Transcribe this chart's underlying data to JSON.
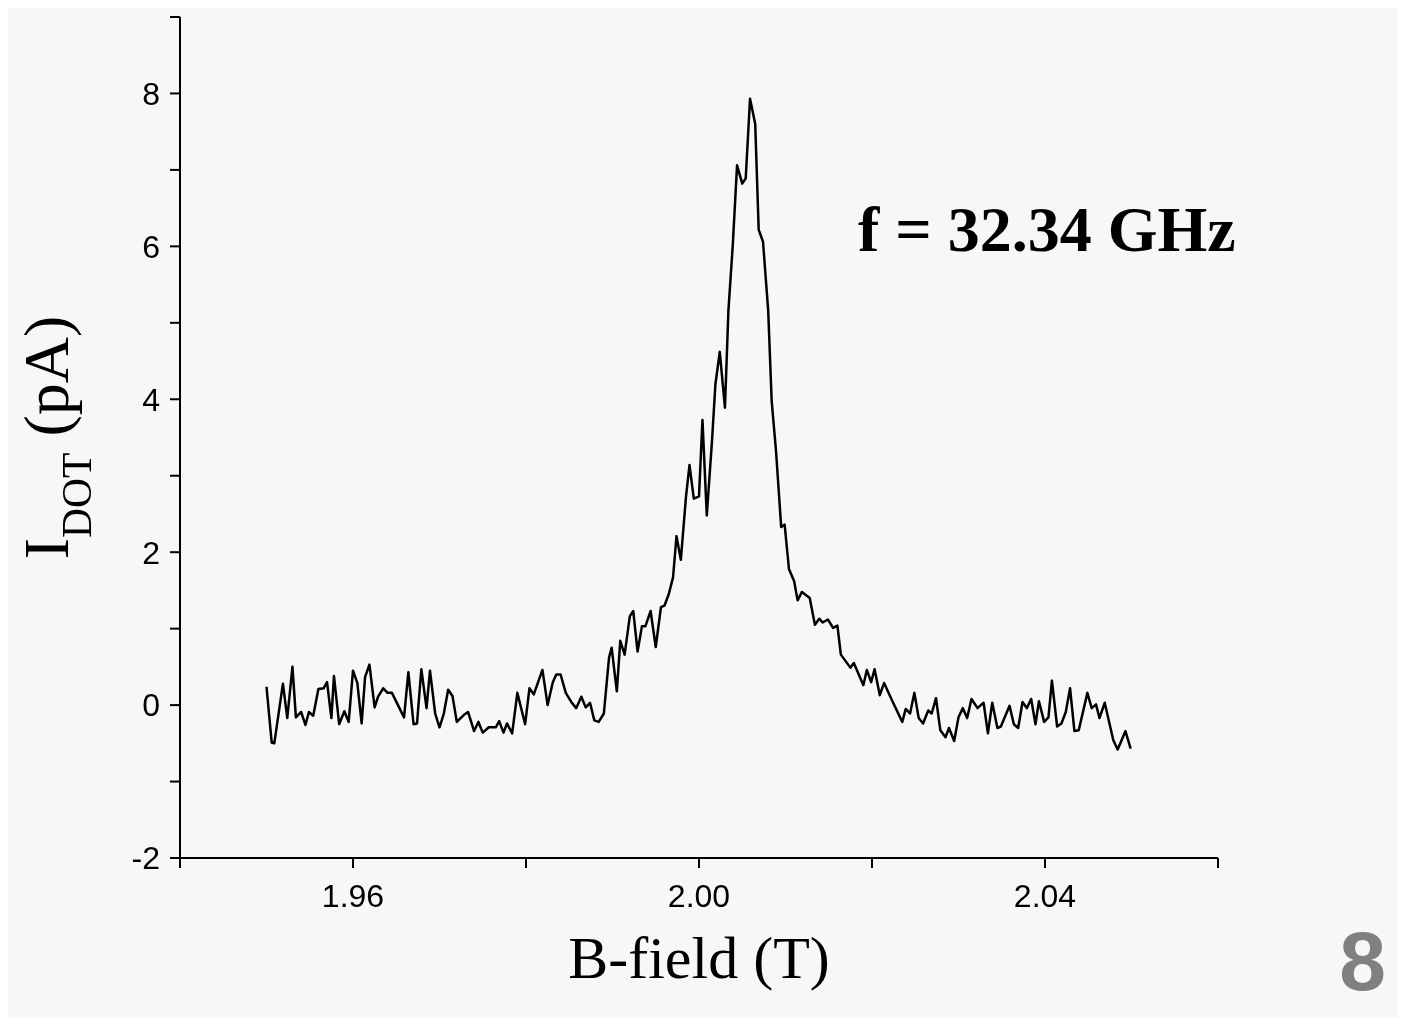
{
  "chart_data": {
    "type": "line",
    "xlabel": "B-field (T)",
    "ylabel": "I$_{DOT}$ (pA)",
    "annotations": [
      "f = 32.34 GHz",
      "8"
    ],
    "xlim": [
      1.94,
      2.06
    ],
    "ylim": [
      -2,
      9
    ],
    "xticks": [
      {
        "value": 1.94,
        "label": null
      },
      1.96,
      {
        "value": 1.98,
        "label": null
      },
      {
        "value": 2,
        "label": "2.00"
      },
      {
        "value": 2.02,
        "label": null
      },
      2.04,
      {
        "value": 2.06,
        "label": null
      }
    ],
    "yticks": [
      -2,
      {
        "value": -1,
        "label": null
      },
      0,
      {
        "value": 1,
        "label": null
      },
      2,
      {
        "value": 3,
        "label": null
      },
      4,
      {
        "value": 5,
        "label": null
      },
      6,
      {
        "value": 7,
        "label": null
      },
      8,
      {
        "value": 9,
        "label": null
      }
    ],
    "grid": false,
    "legend": false,
    "marker": "none",
    "line_style": "solid",
    "series": [
      {
        "color": "#000000",
        "x": [
          1.95,
          1.9506,
          1.9509,
          1.9519,
          1.9524,
          1.953,
          1.9534,
          1.954,
          1.9545,
          1.9549,
          1.9554,
          1.956,
          1.9566,
          1.957,
          1.9575,
          1.9578,
          1.9584,
          1.959,
          1.9595,
          1.96,
          1.9605,
          1.961,
          1.9614,
          1.9619,
          1.9625,
          1.9629,
          1.9635,
          1.964,
          1.9645,
          1.9652,
          1.9659,
          1.9664,
          1.967,
          1.9674,
          1.9679,
          1.9685,
          1.9689,
          1.9695,
          1.97,
          1.9705,
          1.971,
          1.9715,
          1.972,
          1.9728,
          1.9733,
          1.974,
          1.9745,
          1.975,
          1.9757,
          1.9765,
          1.9769,
          1.9774,
          1.9778,
          1.9784,
          1.979,
          1.9799,
          1.9804,
          1.9809,
          1.9819,
          1.9825,
          1.9831,
          1.9835,
          1.984,
          1.9846,
          1.9853,
          1.9858,
          1.9864,
          1.9869,
          1.9874,
          1.9879,
          1.9884,
          1.989,
          1.9896,
          1.9899,
          1.9905,
          1.9909,
          1.9914,
          1.992,
          1.9924,
          1.9929,
          1.9934,
          1.9938,
          1.9944,
          1.995,
          1.9956,
          1.996,
          1.9965,
          1.997,
          1.9974,
          1.9979,
          1.9985,
          1.9989,
          1.9994,
          2.0,
          2.0004,
          2.0009,
          2.0015,
          2.0019,
          2.0024,
          2.003,
          2.0034,
          2.0039,
          2.0044,
          2.005,
          2.0054,
          2.0059,
          2.0065,
          2.0069,
          2.0074,
          2.008,
          2.0084,
          2.0089,
          2.0095,
          2.0099,
          2.0104,
          2.011,
          2.0114,
          2.0119,
          2.0128,
          2.0134,
          2.0139,
          2.0143,
          2.0149,
          2.0155,
          2.016,
          2.0164,
          2.0175,
          2.0179,
          2.019,
          2.0194,
          2.0199,
          2.0203,
          2.0209,
          2.0214,
          2.0222,
          2.0235,
          2.0239,
          2.0244,
          2.0249,
          2.0254,
          2.0259,
          2.0265,
          2.0269,
          2.0274,
          2.0279,
          2.0285,
          2.0289,
          2.0295,
          2.03,
          2.0305,
          2.031,
          2.0315,
          2.0322,
          2.0329,
          2.0334,
          2.0339,
          2.0345,
          2.0349,
          2.0359,
          2.0364,
          2.0369,
          2.0374,
          2.0379,
          2.0384,
          2.0389,
          2.0393,
          2.0399,
          2.0404,
          2.0408,
          2.0414,
          2.0419,
          2.0424,
          2.0429,
          2.0434,
          2.0439,
          2.0449,
          2.0454,
          2.0459,
          2.0463,
          2.0469,
          2.0479,
          2.0484,
          2.049,
          2.0493,
          2.0499
        ],
        "values": [
          0.24,
          -0.49,
          -0.5,
          0.28,
          -0.17,
          0.5,
          -0.16,
          -0.09,
          -0.26,
          -0.09,
          -0.14,
          0.21,
          0.22,
          0.3,
          -0.17,
          0.38,
          -0.25,
          -0.08,
          -0.22,
          0.45,
          0.29,
          -0.24,
          0.37,
          0.53,
          -0.03,
          0.11,
          0.22,
          0.16,
          0.16,
          0.0,
          -0.16,
          0.43,
          -0.25,
          -0.24,
          0.47,
          -0.04,
          0.45,
          -0.11,
          -0.29,
          -0.11,
          0.2,
          0.12,
          -0.22,
          -0.13,
          -0.09,
          -0.34,
          -0.22,
          -0.36,
          -0.29,
          -0.29,
          -0.21,
          -0.36,
          -0.24,
          -0.37,
          0.16,
          -0.25,
          0.22,
          0.14,
          0.46,
          0.0,
          0.3,
          0.4,
          0.4,
          0.16,
          0.03,
          -0.04,
          0.11,
          -0.03,
          0.03,
          -0.2,
          -0.22,
          -0.11,
          0.62,
          0.75,
          0.18,
          0.84,
          0.66,
          1.16,
          1.23,
          0.7,
          1.03,
          1.03,
          1.23,
          0.76,
          1.28,
          1.3,
          1.45,
          1.67,
          2.21,
          1.9,
          2.73,
          3.14,
          2.7,
          2.73,
          3.73,
          2.48,
          3.45,
          4.2,
          4.62,
          3.89,
          5.16,
          6.01,
          7.06,
          6.82,
          6.89,
          7.93,
          7.6,
          6.22,
          6.06,
          5.16,
          3.98,
          3.33,
          2.33,
          2.36,
          1.78,
          1.62,
          1.37,
          1.48,
          1.4,
          1.05,
          1.13,
          1.08,
          1.12,
          1.01,
          1.04,
          0.66,
          0.49,
          0.55,
          0.26,
          0.46,
          0.3,
          0.47,
          0.13,
          0.29,
          0.09,
          -0.22,
          -0.05,
          -0.11,
          0.16,
          -0.17,
          -0.24,
          -0.07,
          -0.11,
          0.09,
          -0.33,
          -0.42,
          -0.3,
          -0.47,
          -0.16,
          -0.04,
          -0.17,
          0.08,
          -0.04,
          0.03,
          -0.37,
          0.03,
          -0.3,
          -0.28,
          -0.01,
          -0.25,
          -0.3,
          0.04,
          -0.04,
          0.08,
          -0.25,
          0.05,
          -0.22,
          -0.16,
          0.32,
          -0.28,
          -0.24,
          -0.09,
          0.22,
          -0.34,
          -0.33,
          0.16,
          -0.04,
          0.01,
          -0.17,
          0.03,
          -0.46,
          -0.58,
          -0.42,
          -0.34,
          -0.57
        ]
      }
    ]
  }
}
